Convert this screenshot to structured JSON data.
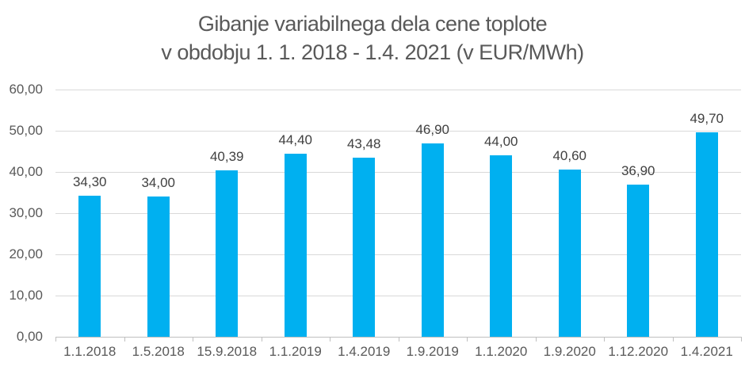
{
  "title": {
    "line1": "Gibanje variabilnega dela cene toplote",
    "line2": "v obdobju 1. 1. 2018 - 1.4. 2021 (v EUR/MWh)"
  },
  "colors": {
    "bar": "#00B0F0",
    "gridline": "#D9D9D9",
    "axis_line": "#BFBFBF",
    "title_text": "#595959",
    "axis_label_text": "#595959",
    "data_label_text": "#404040",
    "background": "#FFFFFF"
  },
  "chart_data": {
    "type": "bar",
    "title": "Gibanje variabilnega dela cene toplote v obdobju 1. 1. 2018 - 1.4. 2021 (v EUR/MWh)",
    "categories": [
      "1.1.2018",
      "1.5.2018",
      "15.9.2018",
      "1.1.2019",
      "1.4.2019",
      "1.9.2019",
      "1.1.2020",
      "1.9.2020",
      "1.12.2020",
      "1.4.2021"
    ],
    "values": [
      34.3,
      34.0,
      40.39,
      44.4,
      43.48,
      46.9,
      44.0,
      40.6,
      36.9,
      49.7
    ],
    "data_labels": [
      "34,30",
      "34,00",
      "40,39",
      "44,40",
      "43,48",
      "46,90",
      "44,00",
      "40,60",
      "36,90",
      "49,70"
    ],
    "xlabel": "",
    "ylabel": "",
    "ylim": [
      0,
      60
    ],
    "ytick_step": 10,
    "ytick_labels": [
      "0,00",
      "10,00",
      "20,00",
      "30,00",
      "40,00",
      "50,00",
      "60,00"
    ],
    "grid": true,
    "legend": false,
    "series_color": "#00B0F0"
  }
}
